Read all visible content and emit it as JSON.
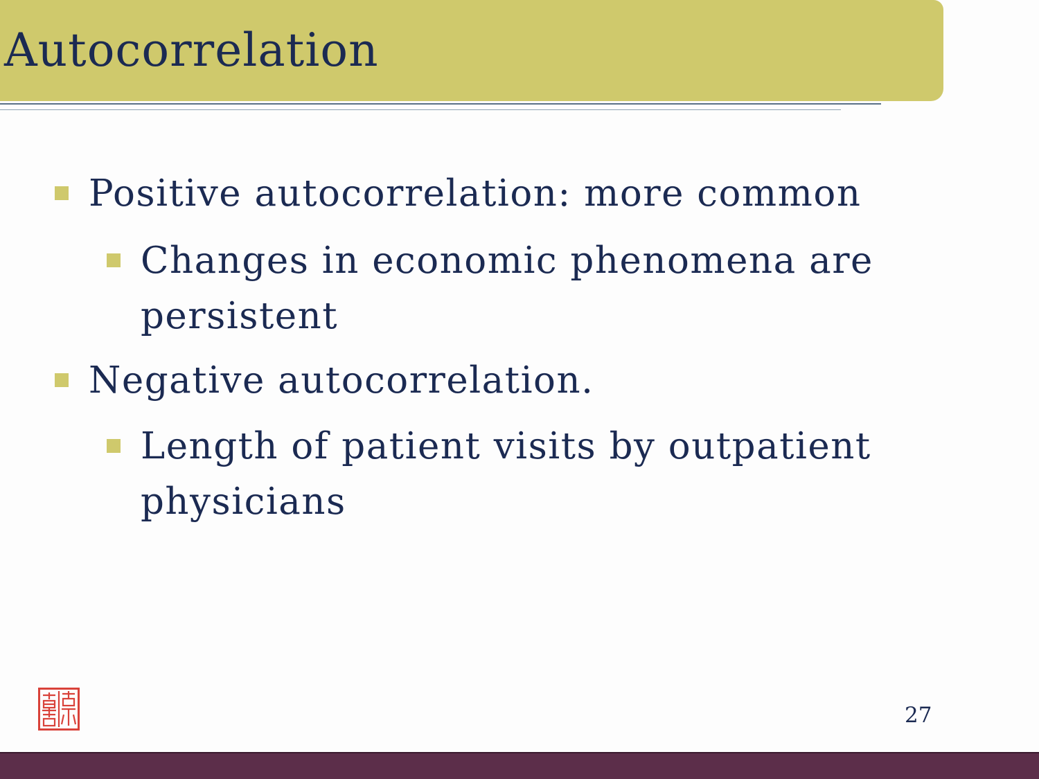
{
  "slide": {
    "title": "Autocorrelation",
    "page_number": "27"
  },
  "bullets": [
    {
      "level": 1,
      "text": "Positive autocorrelation: more common"
    },
    {
      "level": 2,
      "lines": [
        "Changes in economic phenomena are",
        "persistent"
      ]
    },
    {
      "level": 1,
      "text": "Negative autocorrelation."
    },
    {
      "level": 2,
      "lines": [
        "Length of patient visits by outpatient",
        "physicians"
      ]
    }
  ],
  "colors": {
    "title_bar": "#cfc96c",
    "text": "#1b2a52",
    "footer": "#5c2e4a",
    "seal": "#d9423a"
  },
  "icons": {
    "seal": "red-seal-stamp-icon",
    "bullet": "square-bullet-icon"
  }
}
